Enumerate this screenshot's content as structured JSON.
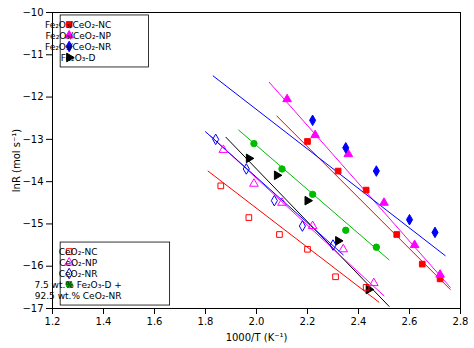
{
  "chart_data": {
    "type": "scatter",
    "xlabel": "1000/T (K⁻¹)",
    "ylabel": "lnR (mol s⁻¹)",
    "xlim": [
      1.2,
      2.8
    ],
    "ylim": [
      -17,
      -10
    ],
    "xticks": [
      1.2,
      1.4,
      1.6,
      1.8,
      {
        "value": 2.0,
        "label": "2.0"
      },
      2.2,
      2.4,
      2.6,
      2.8
    ],
    "yticks": [
      -17,
      -16,
      -15,
      -14,
      -13,
      -12,
      -11,
      -10
    ],
    "grid": false,
    "series": [
      {
        "name": "Fe₂O₃/CeO₂-NC",
        "color": "#ff0000",
        "marker": "square",
        "line_style": "solid",
        "legend": "upper left",
        "x": [
          2.2,
          2.32,
          2.43,
          2.55,
          2.65,
          2.72
        ],
        "values": [
          -13.05,
          -13.75,
          -14.2,
          -15.25,
          -15.95,
          -16.3
        ],
        "line_x": [
          2.08,
          2.76
        ],
        "line_y": [
          -12.45,
          -16.55
        ]
      },
      {
        "name": "Fe₂O₃/CeO₂-NP",
        "color": "#ff00ff",
        "marker": "triangle",
        "line_style": "solid",
        "legend": "upper left",
        "x": [
          2.12,
          2.23,
          2.36,
          2.5,
          2.62,
          2.72
        ],
        "values": [
          -12.05,
          -12.9,
          -13.35,
          -14.5,
          -15.5,
          -16.2
        ],
        "line_x": [
          2.05,
          2.76
        ],
        "line_y": [
          -11.65,
          -16.5
        ]
      },
      {
        "name": "Fe₂O₃/CeO₂-NR",
        "color": "#0000ff",
        "marker": "diamond",
        "line_style": "solid",
        "legend": "upper left",
        "x": [
          2.22,
          2.35,
          2.47,
          2.6,
          2.7
        ],
        "values": [
          -12.55,
          -13.2,
          -13.75,
          -14.9,
          -15.2
        ],
        "line_x": [
          1.83,
          2.74
        ],
        "line_y": [
          -11.5,
          -15.75
        ]
      },
      {
        "name": "Fe₂O₃-D",
        "color": "#000000",
        "marker": "triangle-right",
        "line_style": "solid",
        "legend": "upper left",
        "x": [
          1.97,
          2.08,
          2.2,
          2.32,
          2.44
        ],
        "values": [
          -13.45,
          -13.85,
          -14.45,
          -15.4,
          -16.55
        ],
        "line_x": [
          1.88,
          2.52
        ],
        "line_y": [
          -12.95,
          -16.95
        ]
      },
      {
        "name": "CeO₂-NC",
        "color": "#ff0000",
        "marker": "open-square",
        "line_style": "solid",
        "legend": "lower left",
        "x": [
          1.86,
          1.97,
          2.09,
          2.2,
          2.31,
          2.43
        ],
        "values": [
          -14.1,
          -14.85,
          -15.25,
          -15.6,
          -16.25,
          -16.5
        ],
        "line_x": [
          1.81,
          2.48
        ],
        "line_y": [
          -13.75,
          -16.85
        ]
      },
      {
        "name": "CeO₂-NP",
        "color": "#ff00ff",
        "marker": "open-triangle",
        "line_style": "solid",
        "legend": "lower left",
        "x": [
          1.87,
          1.99,
          2.1,
          2.22,
          2.34,
          2.46
        ],
        "values": [
          -13.25,
          -14.05,
          -14.5,
          -15.05,
          -15.6,
          -16.4
        ],
        "line_x": [
          1.82,
          2.5
        ],
        "line_y": [
          -12.92,
          -16.7
        ]
      },
      {
        "name": "CeO₂-NR",
        "color": "#0000ff",
        "marker": "open-diamond",
        "line_style": "solid",
        "legend": "lower left",
        "x": [
          1.84,
          1.96,
          2.07,
          2.18,
          2.3
        ],
        "values": [
          -13.0,
          -13.7,
          -14.45,
          -15.05,
          -15.5
        ],
        "line_x": [
          1.8,
          2.34
        ],
        "line_y": [
          -12.82,
          -15.73
        ]
      },
      {
        "name": "7.5 wt.% Fe₂O₃-D +\n92.5 wt.% CeO₂-NR",
        "color": "#00bb00",
        "marker": "circle",
        "line_style": "solid",
        "legend": "lower left",
        "x": [
          1.99,
          2.1,
          2.22,
          2.35,
          2.47
        ],
        "values": [
          -13.1,
          -13.7,
          -14.3,
          -15.15,
          -15.55
        ],
        "line_x": [
          1.93,
          2.52
        ],
        "line_y": [
          -12.78,
          -15.85
        ]
      }
    ]
  }
}
